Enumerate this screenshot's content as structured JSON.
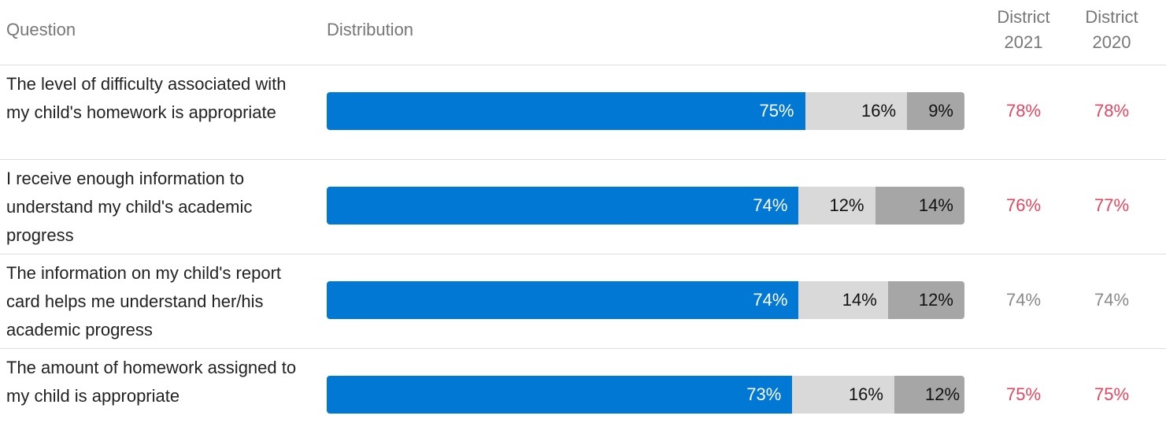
{
  "table": {
    "headers": [
      "Question",
      "Distribution",
      "District 2021",
      "District 2020"
    ],
    "colors": [
      "#0078d4",
      "#d9d9d9",
      "#a6a6a6"
    ],
    "xlim": [
      0,
      100
    ],
    "rows": [
      {
        "question": "The level of difficulty associated with my child's homework is appropriate",
        "values": [
          75,
          16,
          9
        ],
        "value_labels": [
          "75%",
          "16%",
          "9%"
        ],
        "district_2021": "78%",
        "district_2020": "78%"
      },
      {
        "question": "I receive enough information to understand my child's academic progress",
        "values": [
          74,
          12,
          14
        ],
        "value_labels": [
          "74%",
          "12%",
          "14%"
        ],
        "district_2021": "76%",
        "district_2020": "77%"
      },
      {
        "question": "The information on my child's report card helps me understand her/his academic progress",
        "values": [
          74,
          14,
          12
        ],
        "value_labels": [
          "74%",
          "14%",
          "12%"
        ],
        "district_2021": "74%",
        "district_2020": "74%"
      },
      {
        "question": "The amount of homework assigned to my child is appropriate",
        "values": [
          73,
          16,
          12
        ],
        "value_labels": [
          "73%",
          "16%",
          "12%"
        ],
        "district_2021": "75%",
        "district_2020": "75%"
      }
    ]
  }
}
